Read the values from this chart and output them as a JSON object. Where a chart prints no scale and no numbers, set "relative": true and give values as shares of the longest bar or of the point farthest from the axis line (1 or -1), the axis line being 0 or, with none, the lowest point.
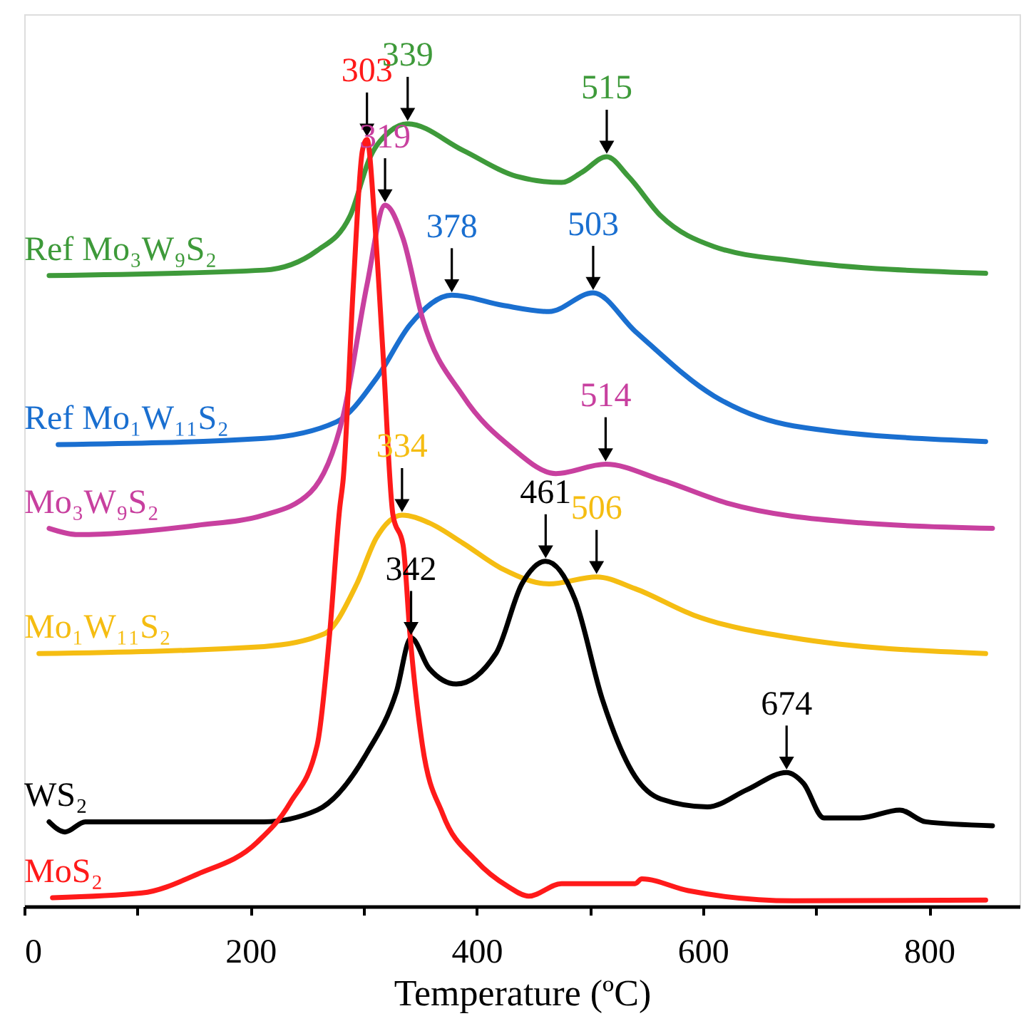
{
  "chart_data": {
    "type": "line",
    "relative": true,
    "xlabel": "Temperature (ºC)",
    "xlim": [
      0,
      880
    ],
    "xticks": [
      0,
      {
        "value": 100,
        "label": null
      },
      200,
      {
        "value": 300,
        "label": null
      },
      400,
      {
        "value": 500,
        "label": null
      },
      600,
      {
        "value": 700,
        "label": null
      },
      800
    ],
    "line_style": "solid",
    "legend": false,
    "series": [
      {
        "name": "Ref  Mo₃W₉S₂",
        "color": "#3e9a3a",
        "x": [
          22,
          212,
          259,
          288,
          306,
          323,
          339,
          388,
          435,
          475,
          493,
          515,
          534,
          563,
          610,
          680,
          850
        ],
        "values": [
          0.806,
          0.813,
          0.838,
          0.882,
          0.958,
          0.99,
          1.0,
          0.966,
          0.933,
          0.925,
          0.938,
          0.958,
          0.933,
          0.882,
          0.843,
          0.825,
          0.809
        ]
      },
      {
        "name": "Ref  Mo₁W₁₁S₂",
        "color": "#1a6fd0",
        "x": [
          30,
          212,
          276,
          312,
          341,
          378,
          423,
          464,
          503,
          540,
          610,
          680,
          850
        ],
        "values": [
          0.59,
          0.598,
          0.619,
          0.676,
          0.743,
          0.781,
          0.768,
          0.76,
          0.784,
          0.735,
          0.652,
          0.614,
          0.594
        ]
      },
      {
        "name": "Mo₃W₉S₂",
        "color": "#c8409f",
        "x": [
          22,
          48,
          153,
          212,
          253,
          282,
          303,
          319,
          335,
          352,
          388,
          431,
          470,
          514,
          563,
          622,
          739,
          856
        ],
        "values": [
          0.483,
          0.475,
          0.487,
          0.5,
          0.529,
          0.627,
          0.794,
          0.896,
          0.853,
          0.752,
          0.652,
          0.586,
          0.553,
          0.565,
          0.545,
          0.515,
          0.49,
          0.483
        ]
      },
      {
        "name": "Mo₁W₁₁S₂",
        "color": "#f5bd12",
        "x": [
          13,
          212,
          265,
          294,
          311,
          334,
          358,
          388,
          423,
          464,
          506,
          540,
          592,
          680,
          850
        ],
        "values": [
          0.323,
          0.332,
          0.348,
          0.412,
          0.47,
          0.5,
          0.49,
          0.464,
          0.431,
          0.412,
          0.421,
          0.406,
          0.372,
          0.343,
          0.323
        ]
      },
      {
        "name": "WS₂",
        "color": "#000000",
        "x": [
          22,
          36,
          54,
          212,
          259,
          303,
          329,
          342,
          358,
          382,
          417,
          440,
          461,
          487,
          511,
          540,
          563,
          604,
          639,
          674,
          689,
          707,
          739,
          774,
          797,
          856
        ],
        "values": [
          0.108,
          0.095,
          0.108,
          0.108,
          0.123,
          0.196,
          0.274,
          0.343,
          0.304,
          0.284,
          0.323,
          0.412,
          0.441,
          0.392,
          0.265,
          0.166,
          0.137,
          0.127,
          0.149,
          0.171,
          0.157,
          0.113,
          0.113,
          0.123,
          0.108,
          0.103
        ]
      },
      {
        "name": "MoS₂",
        "color": "#ff1a1a",
        "x": [
          25,
          104,
          153,
          206,
          235,
          259,
          270,
          279,
          282,
          291,
          299,
          303,
          310,
          317,
          326,
          335,
          341,
          352,
          370,
          399,
          428,
          446,
          475,
          540,
          546,
          587,
          680,
          850
        ],
        "values": [
          0.011,
          0.017,
          0.041,
          0.082,
          0.132,
          0.206,
          0.348,
          0.51,
          0.546,
          0.794,
          0.966,
          0.98,
          0.872,
          0.711,
          0.5,
          0.461,
          0.348,
          0.206,
          0.118,
          0.059,
          0.025,
          0.013,
          0.029,
          0.029,
          0.035,
          0.02,
          0.007,
          0.008
        ]
      }
    ],
    "annotations": [
      {
        "text": "303",
        "x": 303,
        "y": 0.98
      },
      {
        "text": "339",
        "x": 339,
        "y": 1.0
      },
      {
        "text": "515",
        "x": 515,
        "y": 0.958
      },
      {
        "text": "319",
        "x": 319,
        "y": 0.896
      },
      {
        "text": "378",
        "x": 378,
        "y": 0.781
      },
      {
        "text": "503",
        "x": 503,
        "y": 0.784
      },
      {
        "text": "514",
        "x": 514,
        "y": 0.565
      },
      {
        "text": "334",
        "x": 334,
        "y": 0.5
      },
      {
        "text": "461",
        "x": 461,
        "y": 0.441
      },
      {
        "text": "506",
        "x": 506,
        "y": 0.421
      },
      {
        "text": "342",
        "x": 342,
        "y": 0.343
      },
      {
        "text": "674",
        "x": 674,
        "y": 0.171
      }
    ]
  }
}
